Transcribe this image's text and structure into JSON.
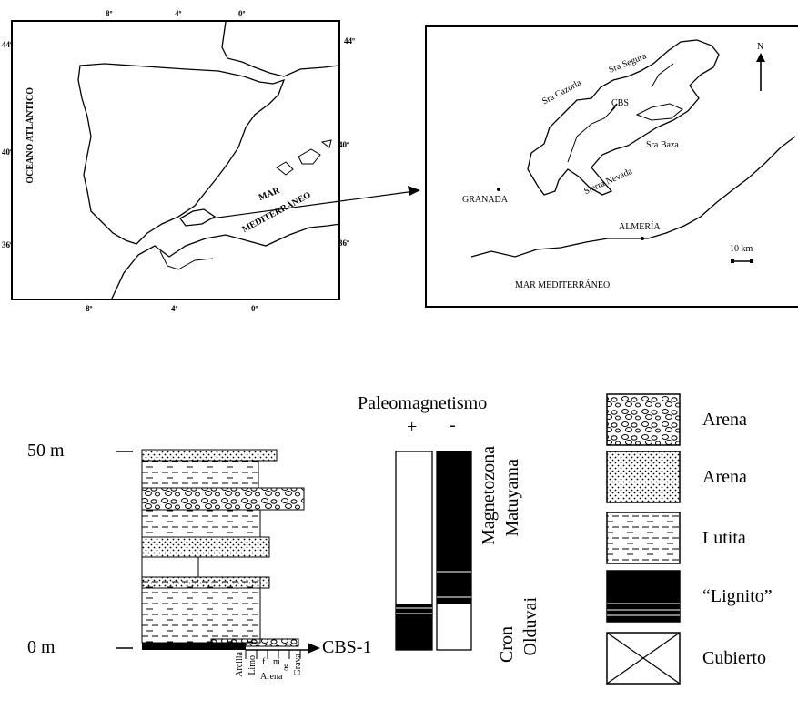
{
  "map1": {
    "top_ticks": [
      "8º",
      "4º",
      "0º"
    ],
    "bottom_ticks": [
      "8º",
      "4º",
      "0º"
    ],
    "left_ticks": [
      "44º",
      "40º",
      "36º"
    ],
    "right_ticks": [
      "44º",
      "40º",
      "36º"
    ],
    "ocean": "OCÉANO ATLÁNTICO",
    "sea_line1": "MAR",
    "sea_line2": "MEDITERRÁNEO"
  },
  "map2": {
    "north": "N",
    "cazorla": "Sra Cazorla",
    "segura": "Sra Segura",
    "cbs": "CBS",
    "baza": "Sra Baza",
    "nevada": "Sierra Nevada",
    "granada": "GRANADA",
    "almeria": "ALMERÍA",
    "scale": "10 km",
    "sea": "MAR MEDITERRÁNEO"
  },
  "column": {
    "top_label": "50 m",
    "bottom_label": "0 m",
    "cbs_label": "CBS-1",
    "grain_arcilla": "Arcilla",
    "grain_limo": "Limo",
    "grain_f": "f",
    "grain_m": "m",
    "grain_g": "g",
    "grain_arena": "Arena",
    "grain_grava": "Grava"
  },
  "paleo": {
    "title": "Paleomagnetismo",
    "plus": "+",
    "minus": "-",
    "zone_top_1": "Magnetozona",
    "zone_top_2": "Matuyama",
    "zone_bot_1": "Cron",
    "zone_bot_2": "Olduvai"
  },
  "legend": {
    "items": [
      "Arena",
      "Arena",
      "Lutita",
      "“Lignito”",
      "Cubierto"
    ]
  }
}
